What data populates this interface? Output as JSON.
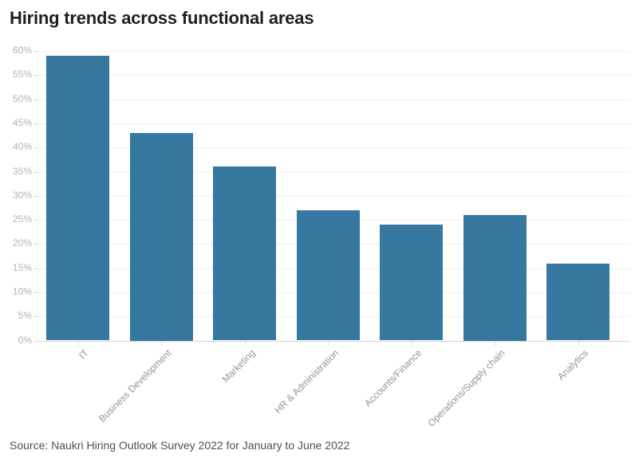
{
  "title": "Hiring trends across functional areas",
  "source": "Source: Naukri Hiring Outlook Survey 2022 for January to June 2022",
  "colors": {
    "bar": "#36789F",
    "title_text": "#1f1f1f",
    "grid": "#efefef",
    "axis": "#d5d5d5",
    "y_label": "#b3b3b3",
    "x_label": "#949494",
    "source_text": "#4f4f4f",
    "background": "#ffffff"
  },
  "chart_data": {
    "type": "bar",
    "title": "Hiring trends across functional areas",
    "categories": [
      "IT",
      "Business Development",
      "Marketing",
      "HR & Administration",
      "Accounts/Finance",
      "Operations/Supply chain",
      "Analytics"
    ],
    "values": [
      59,
      43,
      36,
      27,
      24,
      26,
      16
    ],
    "xlabel": "",
    "ylabel": "",
    "ylim": [
      0,
      60
    ],
    "ytick_step": 5,
    "ytick_suffix": "%",
    "grid": true,
    "legend": false,
    "bar_color": "#36789F",
    "source_note": "Source: Naukri Hiring Outlook Survey 2022 for January to June 2022"
  }
}
